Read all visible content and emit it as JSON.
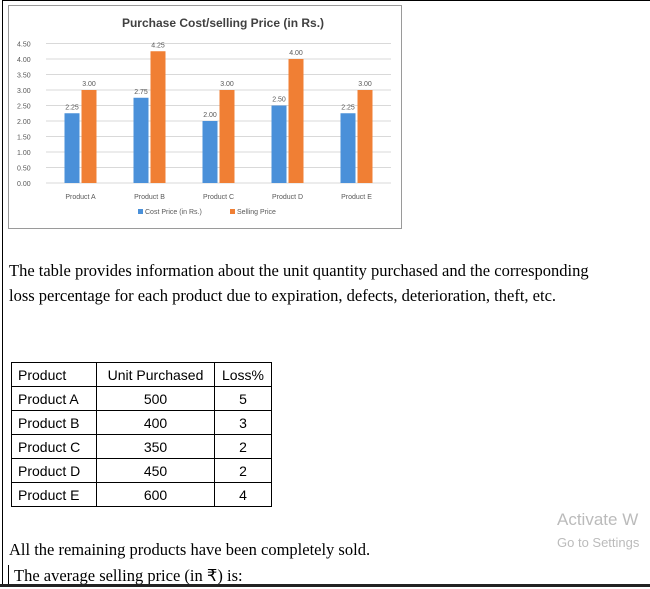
{
  "chart_data": {
    "type": "bar",
    "title": "Purchase Cost/selling Price (in Rs.)",
    "categories": [
      "Product A",
      "Product B",
      "Product C",
      "Product D",
      "Product E"
    ],
    "series": [
      {
        "name": "Cost Price (in Rs.)",
        "values": [
          2.25,
          2.75,
          2.0,
          2.5,
          2.25
        ],
        "labels": [
          "2.25",
          "2.75",
          "2.00",
          "2.50",
          "2.25"
        ],
        "color": "#4a90d9"
      },
      {
        "name": "Selling Price",
        "values": [
          3.0,
          4.25,
          3.0,
          4.0,
          3.0
        ],
        "labels": [
          "3.00",
          "4.25",
          "3.00",
          "4.00",
          "3.00"
        ],
        "color": "#f07f34"
      }
    ],
    "yticks": [
      "0.00",
      "0.50",
      "1.00",
      "1.50",
      "2.00",
      "2.50",
      "3.00",
      "3.50",
      "4.00",
      "4.50"
    ],
    "ylim": [
      0,
      4.5
    ],
    "grid": true,
    "legend": "bottom"
  },
  "paragraph": "The table provides information about the unit quantity purchased and the corresponding loss percentage for each product due to expiration, defects, deterioration, theft, etc.",
  "table": {
    "headers": [
      "Product",
      "Unit Purchased",
      "Loss%"
    ],
    "rows": [
      [
        "Product A",
        "500",
        "5"
      ],
      [
        "Product B",
        "400",
        "3"
      ],
      [
        "Product C",
        "350",
        "2"
      ],
      [
        "Product D",
        "450",
        "2"
      ],
      [
        "Product E",
        "600",
        "4"
      ]
    ]
  },
  "sold_text": "All the remaining products have been completely sold.",
  "question_text": "The average selling price (in ₹) is:",
  "watermark": {
    "title": "Activate W",
    "subtitle": "Go to Settings"
  }
}
